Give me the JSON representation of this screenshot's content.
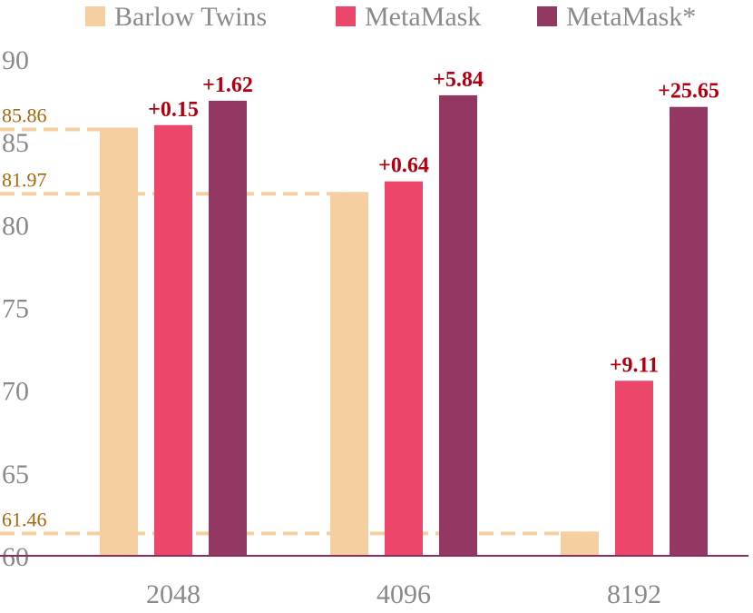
{
  "chart_data": {
    "type": "bar",
    "title": "",
    "xlabel": "",
    "ylabel": "",
    "categories": [
      "2048",
      "4096",
      "8192"
    ],
    "ylim": [
      60,
      90
    ],
    "yticks": [
      "60",
      "65",
      "70",
      "75",
      "80",
      "85",
      "90"
    ],
    "grid": false,
    "legend_position": "top",
    "series": [
      {
        "name": "Barlow Twins",
        "color": "#f6cfa0",
        "values": [
          85.86,
          81.97,
          61.46
        ],
        "deltas": [
          "",
          "",
          ""
        ]
      },
      {
        "name": "MetaMask",
        "color": "#ec476b",
        "values": [
          86.01,
          82.61,
          70.57
        ],
        "deltas": [
          "+0.15",
          "+0.64",
          "+9.11"
        ]
      },
      {
        "name": "MetaMask*",
        "color": "#923862",
        "values": [
          87.48,
          87.81,
          87.11
        ],
        "deltas": [
          "+1.62",
          "+5.84",
          "+25.65"
        ]
      }
    ],
    "reference_lines": [
      {
        "label": "85.86",
        "value": 85.86,
        "category_index": 0
      },
      {
        "label": "81.97",
        "value": 81.97,
        "category_index": 1
      },
      {
        "label": "61.46",
        "value": 61.46,
        "category_index": 2
      }
    ],
    "colors": {
      "axis": "#8b2c5e",
      "delta_text": "#b00010",
      "reference_line": "#f6cfa0",
      "reference_text": "#a8670c",
      "tick_text": "#8a8a8a"
    }
  }
}
